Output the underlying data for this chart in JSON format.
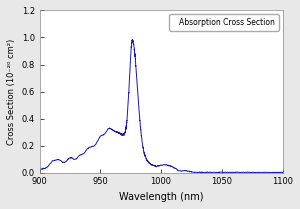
{
  "title": "",
  "xlabel": "Wavelength (nm)",
  "ylabel": "Cross Section (10⁻²⁰ cm²)",
  "legend_label": "Absorption Cross Section",
  "xlim": [
    900,
    1100
  ],
  "ylim": [
    0.0,
    1.2
  ],
  "xticks": [
    900,
    950,
    1000,
    1050,
    1100
  ],
  "yticks": [
    0.0,
    0.2,
    0.4,
    0.6,
    0.8,
    1.0,
    1.2
  ],
  "line_color": "#1a1aaa",
  "background_color": "#e8e8e8",
  "plot_bg": "#ffffff",
  "fig_width": 3.0,
  "fig_height": 2.09,
  "dpi": 100
}
